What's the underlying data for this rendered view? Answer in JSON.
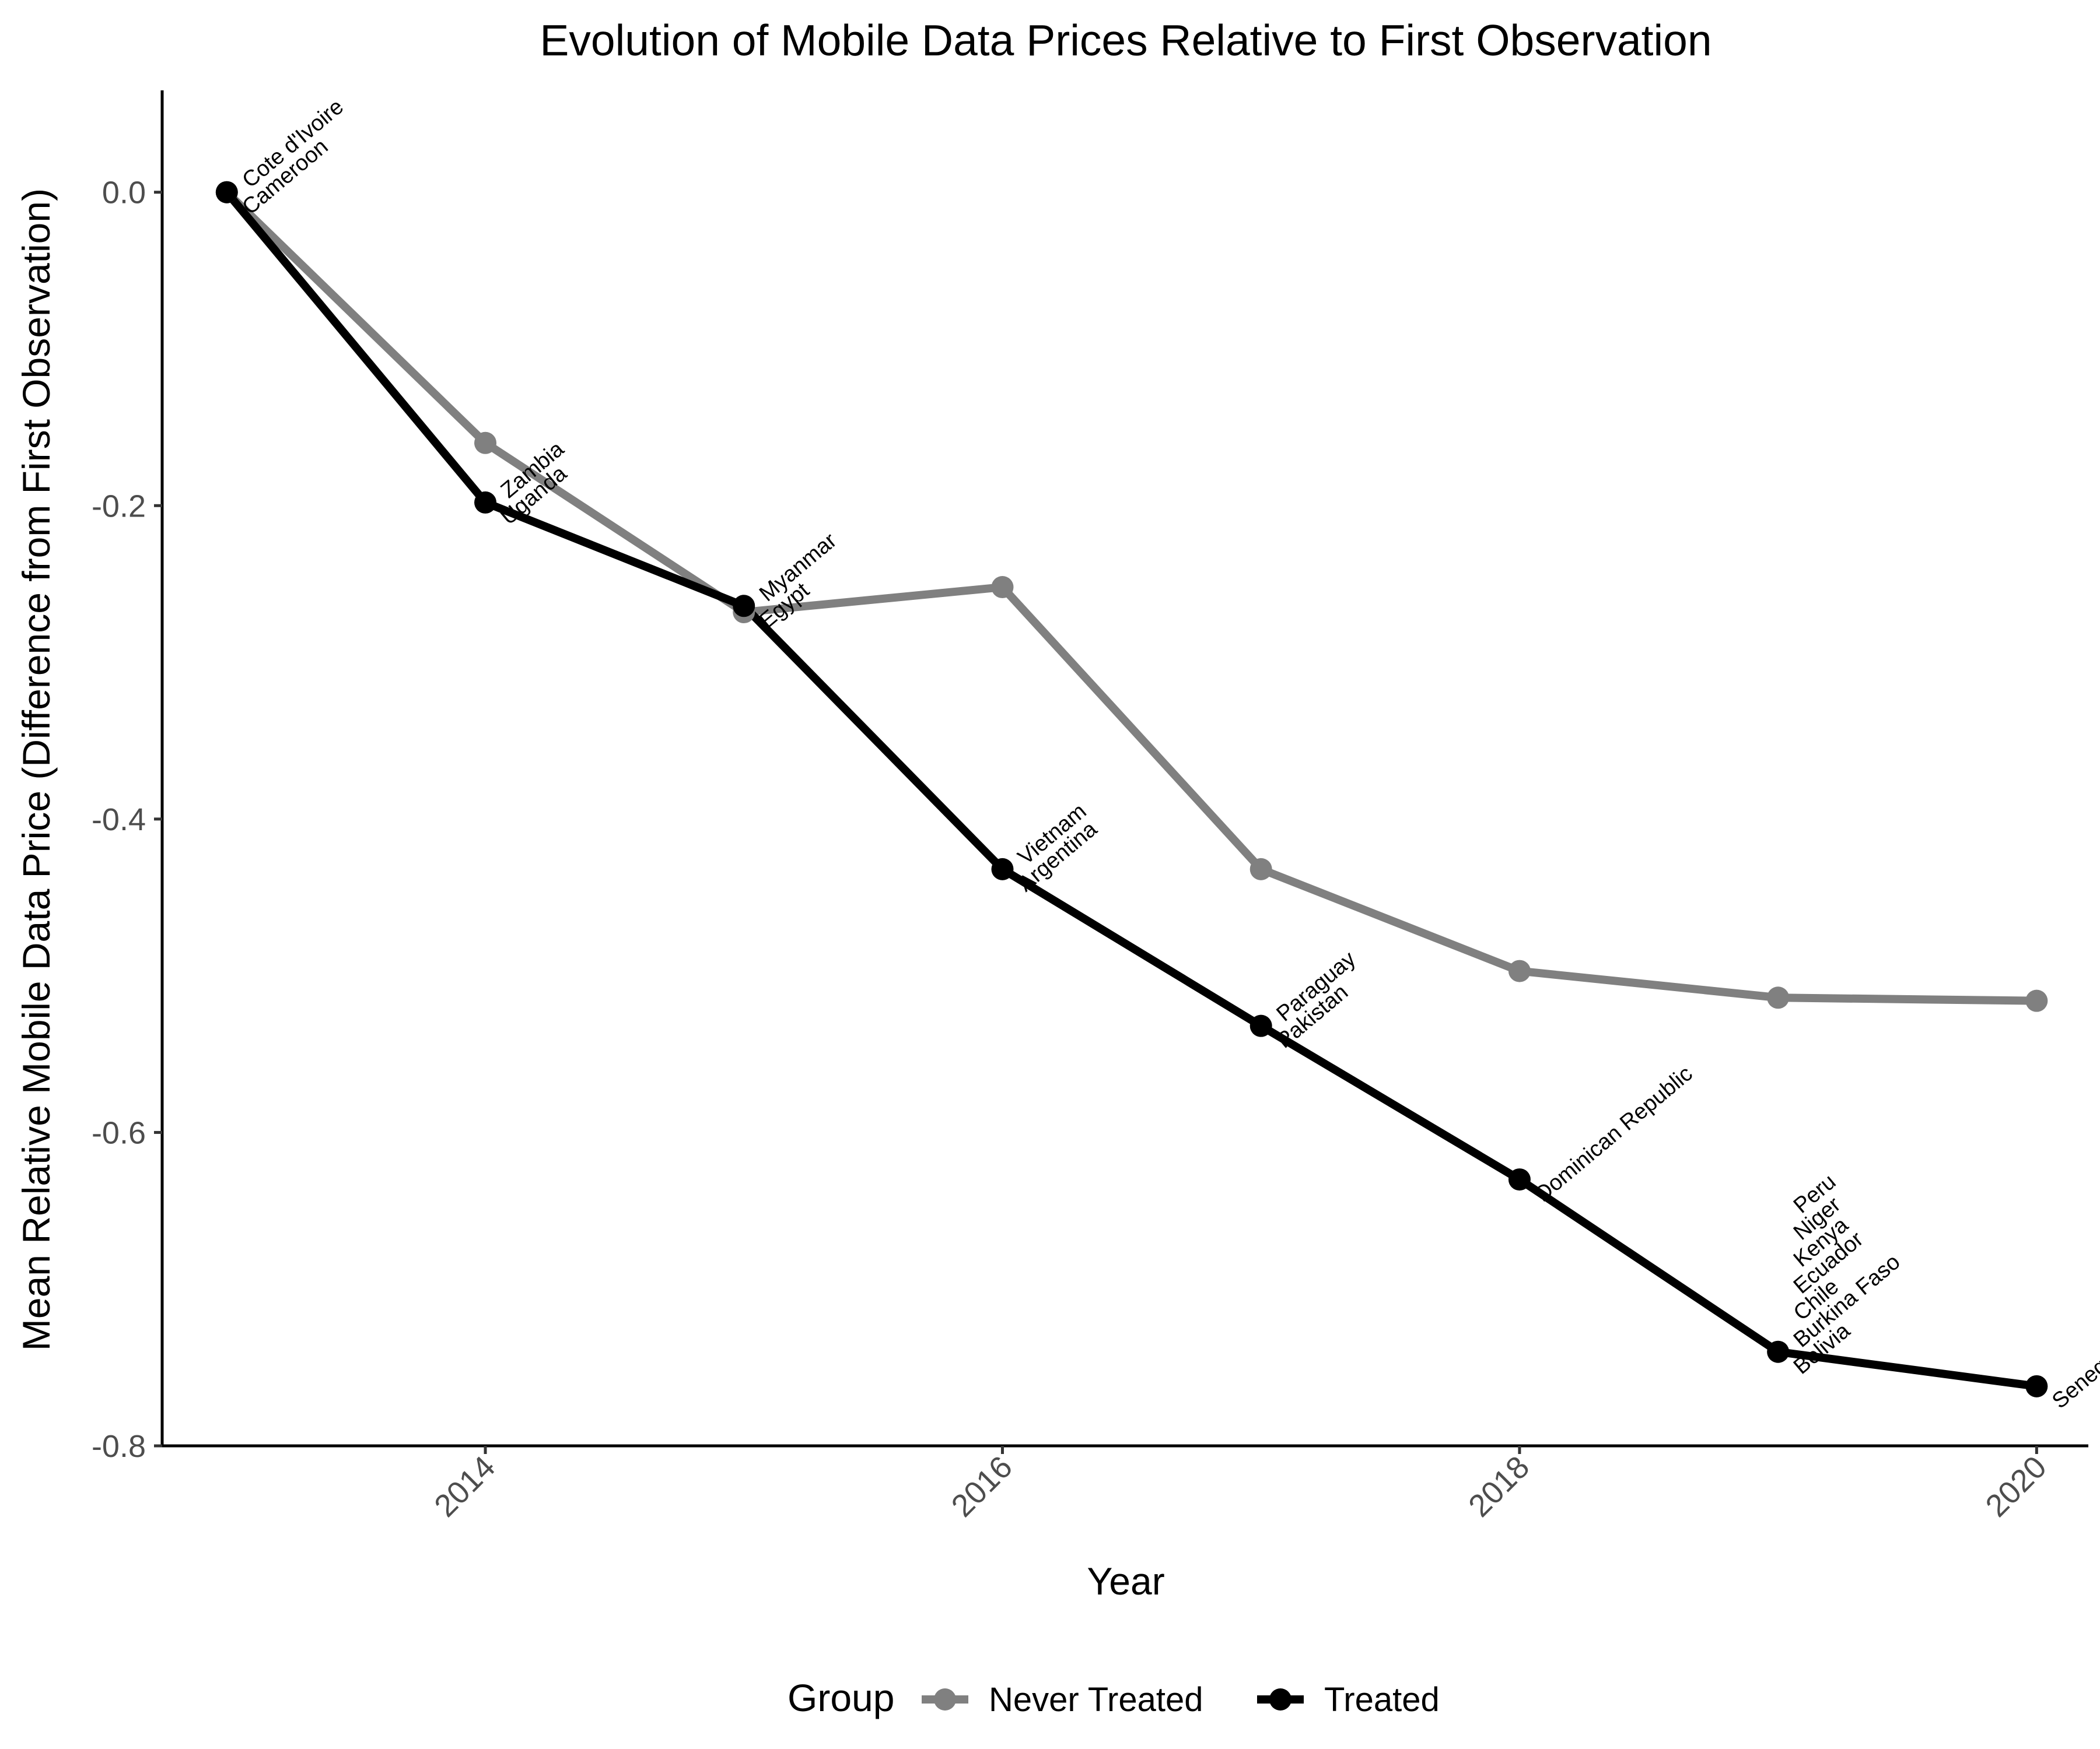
{
  "chart_data": {
    "type": "line",
    "title": "Evolution of Mobile Data Prices Relative to First Observation",
    "xlabel": "Year",
    "ylabel": "Mean Relative Mobile Data Price (Difference from First Observation)",
    "xlim": [
      2012.75,
      2020.2
    ],
    "ylim": [
      -0.8,
      0.065
    ],
    "x_ticks": [
      2014,
      2016,
      2018,
      2020
    ],
    "y_ticks": [
      0.0,
      -0.2,
      -0.4,
      -0.6,
      -0.8
    ],
    "x_tick_labels": [
      "2014",
      "2016",
      "2018",
      "2020"
    ],
    "y_tick_labels": [
      "0.0",
      "-0.2",
      "-0.4",
      "-0.6",
      "-0.8"
    ],
    "grid": false,
    "legend": {
      "title": "Group",
      "position": "bottom"
    },
    "series": [
      {
        "name": "Never Treated",
        "color": "#808080",
        "x": [
          2013,
          2014,
          2015,
          2016,
          2017,
          2018,
          2019,
          2020
        ],
        "y": [
          0.0,
          -0.16,
          -0.268,
          -0.252,
          -0.432,
          -0.497,
          -0.514,
          -0.516
        ]
      },
      {
        "name": "Treated",
        "color": "#000000",
        "x": [
          2013,
          2014,
          2015,
          2016,
          2017,
          2018,
          2019,
          2020
        ],
        "y": [
          0.0,
          -0.198,
          -0.264,
          -0.432,
          -0.532,
          -0.63,
          -0.74,
          -0.762
        ]
      }
    ],
    "annotations": [
      {
        "x": 2013,
        "y": 0.0,
        "labels": [
          "Cote d'Ivoire",
          "Cameroon"
        ]
      },
      {
        "x": 2014,
        "y": -0.198,
        "labels": [
          "Zambia",
          "Uganda"
        ]
      },
      {
        "x": 2015,
        "y": -0.264,
        "labels": [
          "Myanmar",
          "Egypt"
        ]
      },
      {
        "x": 2016,
        "y": -0.432,
        "labels": [
          "Vietnam",
          "Argentina"
        ]
      },
      {
        "x": 2017,
        "y": -0.532,
        "labels": [
          "Paraguay",
          "Pakistan"
        ]
      },
      {
        "x": 2018,
        "y": -0.63,
        "labels": [
          "Dominican Republic"
        ]
      },
      {
        "x": 2019,
        "y": -0.74,
        "labels": [
          "Peru",
          "Niger",
          "Kenya",
          "Ecuador",
          "Chile",
          "Burkina Faso",
          "Bolivia"
        ]
      },
      {
        "x": 2020,
        "y": -0.762,
        "labels": [
          "Senegal"
        ]
      }
    ]
  }
}
